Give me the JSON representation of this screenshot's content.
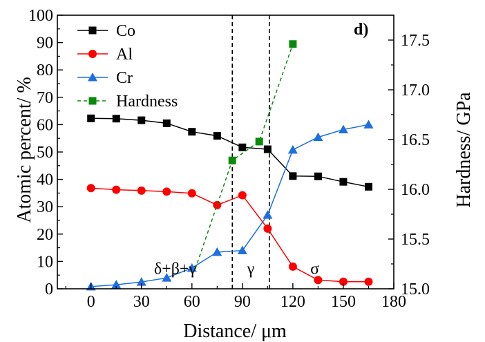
{
  "chart_data": {
    "type": "line",
    "panel_label": "d)",
    "xlabel": "Distance/ μm",
    "ylabel_left": "Atomic percent/ %",
    "ylabel_right": "Hardness/ GPa",
    "xlim": [
      -20,
      180
    ],
    "ylim_left": [
      0,
      100
    ],
    "ylim_right": [
      15.0,
      17.75
    ],
    "x_ticks": [
      0,
      30,
      60,
      90,
      120,
      150,
      180
    ],
    "y_left_ticks": [
      0,
      10,
      20,
      30,
      40,
      50,
      60,
      70,
      80,
      90,
      100
    ],
    "y_right_ticks": [
      "15.0",
      "15.5",
      "16.0",
      "16.5",
      "17.0",
      "17.5"
    ],
    "legend_position": "top-left",
    "series": [
      {
        "name": "Co",
        "axis": "left",
        "color": "#000000",
        "marker": "square",
        "line": "solid",
        "x": [
          0,
          15,
          30,
          45,
          60,
          75,
          90,
          105,
          120,
          135,
          150,
          165
        ],
        "values": [
          62.3,
          62.2,
          61.6,
          60.5,
          57.4,
          55.9,
          51.7,
          51.0,
          41.2,
          41.1,
          39.1,
          37.3
        ]
      },
      {
        "name": "Al",
        "axis": "left",
        "color": "#ff0000",
        "marker": "circle",
        "line": "solid",
        "x": [
          0,
          15,
          30,
          45,
          60,
          75,
          90,
          105,
          120,
          135,
          150,
          165
        ],
        "values": [
          36.8,
          36.2,
          35.9,
          35.5,
          34.9,
          30.6,
          34.2,
          22.0,
          8.1,
          3.2,
          2.6,
          2.6
        ]
      },
      {
        "name": "Cr",
        "axis": "left",
        "color": "#1e6fe0",
        "marker": "triangle",
        "line": "solid",
        "x": [
          0,
          15,
          30,
          45,
          60,
          75,
          90,
          105,
          120,
          135,
          150,
          165
        ],
        "values": [
          0.8,
          1.5,
          2.5,
          4.0,
          7.6,
          13.4,
          14.0,
          27.0,
          50.8,
          55.4,
          58.2,
          60.0
        ]
      },
      {
        "name": "Hardness",
        "axis": "right",
        "color": "#0a8a0a",
        "marker": "square",
        "line": "dashed",
        "x": [
          62,
          84,
          100,
          120
        ],
        "values": [
          15.2,
          16.29,
          16.48,
          17.46
        ]
      }
    ],
    "vlines": [
      84,
      106
    ],
    "annotations": [
      {
        "text": "δ+β+γ",
        "x": 50,
        "y": 7.5
      },
      {
        "text": "γ",
        "x": 95,
        "y": 7.5
      },
      {
        "text": "σ",
        "x": 133,
        "y": 7.5
      }
    ]
  }
}
